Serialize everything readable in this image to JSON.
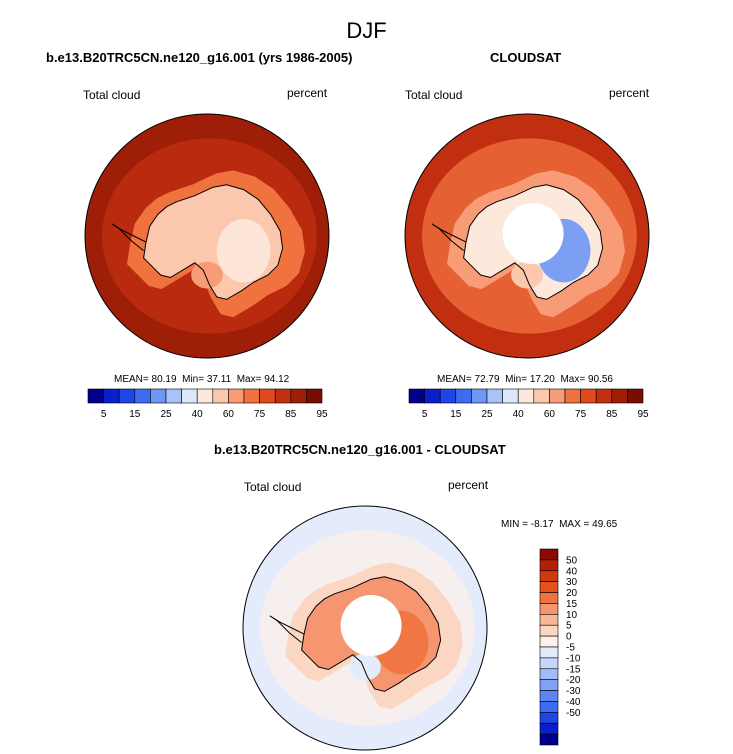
{
  "figure": {
    "title": "DJF"
  },
  "colors": {
    "abs_levels": [
      "#00008b",
      "#0a1ecc",
      "#1f45e6",
      "#3d6cf2",
      "#6f97f5",
      "#a8c3f8",
      "#dbe7fb",
      "#fde8dc",
      "#fbc7ad",
      "#f79c76",
      "#f0723f",
      "#e04a1c",
      "#c22f10",
      "#9e1e08",
      "#7a0d02"
    ],
    "diff_levels": [
      "#00008b",
      "#0a1ecc",
      "#1f45e6",
      "#3d6cf2",
      "#5d86f4",
      "#7fa2f6",
      "#a2bcf8",
      "#c4d6fa",
      "#e4ecfc",
      "#fdf0e8",
      "#fbd6c2",
      "#f8b898",
      "#f59670",
      "#f0733f",
      "#e4531f",
      "#cf3910",
      "#b22008",
      "#8b0a02"
    ],
    "coastline": "#000000"
  },
  "chart_data": [
    {
      "type": "heatmap",
      "projection": "south polar stereographic",
      "title": "b.e13.B20TRC5CN.ne120_g16.001 (yrs 1986-2005)",
      "left_label": "Total cloud",
      "right_label": "percent",
      "stats": {
        "mean_label": "MEAN=",
        "mean": "80.19",
        "min_label": "Min=",
        "min": "37.11",
        "max_label": "Max=",
        "max": "94.12"
      },
      "colorbar": {
        "orientation": "horizontal",
        "levels": [
          5,
          10,
          15,
          20,
          25,
          30,
          40,
          50,
          60,
          70,
          75,
          80,
          85,
          90,
          95
        ],
        "tick_labels": [
          "5",
          "15",
          "25",
          "40",
          "60",
          "75",
          "85",
          "95"
        ]
      },
      "regions": {
        "open_ocean": 88,
        "ocean_band_low": 82,
        "antarctic_coast_ring": 70,
        "ross_sea": 62,
        "ice_sheet": 52,
        "east_antarctica_low": 40,
        "pole_hole": false
      }
    },
    {
      "type": "heatmap",
      "projection": "south polar stereographic",
      "title": "CLOUDSAT",
      "left_label": "Total cloud",
      "right_label": "percent",
      "stats": {
        "mean_label": "MEAN=",
        "mean": "72.79",
        "min_label": "Min=",
        "min": "17.20",
        "max_label": "Max=",
        "max": "90.56"
      },
      "colorbar": {
        "orientation": "horizontal",
        "levels": [
          5,
          10,
          15,
          20,
          25,
          30,
          40,
          50,
          60,
          70,
          75,
          80,
          85,
          90,
          95
        ],
        "tick_labels": [
          "5",
          "15",
          "25",
          "40",
          "60",
          "75",
          "85",
          "95"
        ]
      },
      "regions": {
        "open_ocean": 80,
        "ocean_band_low": 74,
        "antarctic_coast_ring": 62,
        "ross_sea": 55,
        "ice_sheet": 42,
        "east_antarctica_low": 20,
        "pole_hole": true
      }
    },
    {
      "type": "heatmap",
      "projection": "south polar stereographic",
      "title": "b.e13.B20TRC5CN.ne120_g16.001 - CLOUDSAT",
      "left_label": "Total cloud",
      "right_label": "percent",
      "stats": {
        "min_label": "MIN =",
        "min": "-8.17",
        "max_label": "MAX =",
        "max": "49.65"
      },
      "colorbar": {
        "orientation": "vertical",
        "levels": [
          -50,
          -40,
          -30,
          -20,
          -15,
          -10,
          -5,
          0,
          5,
          10,
          15,
          20,
          30,
          40,
          50
        ],
        "tick_labels": [
          "50",
          "40",
          "30",
          "20",
          "15",
          "10",
          "5",
          "0",
          "-5",
          "-10",
          "-15",
          "-20",
          "-30",
          "-40",
          "-50"
        ]
      },
      "regions": {
        "open_ocean": 3,
        "ocean_band_low": 8,
        "antarctic_coast_ring": 10,
        "ross_sea": 2,
        "ice_sheet": 25,
        "east_antarctica_low": 38,
        "pole_hole": true
      }
    }
  ]
}
